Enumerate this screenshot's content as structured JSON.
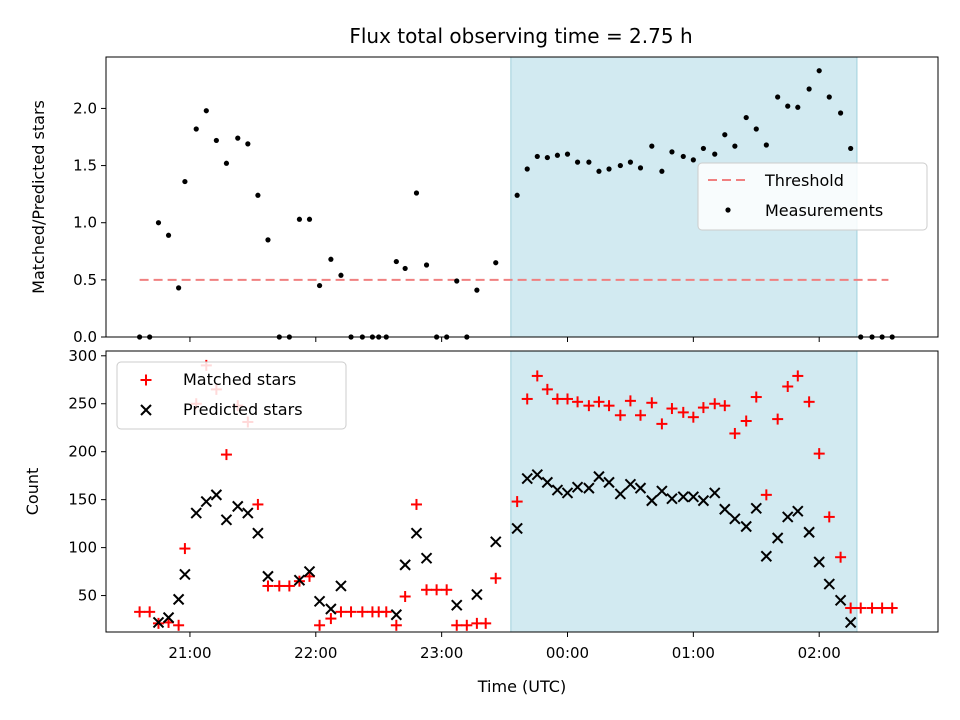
{
  "title": "Flux total observing time = 2.75 h",
  "colors": {
    "threshold": "#f08080",
    "measurement": "#000000",
    "matched": "#ff0000",
    "predicted": "#000000",
    "highlight": "#add8e6"
  },
  "chart_data": [
    {
      "type": "scatter",
      "ylabel": "Matched/Predicted stars",
      "xlim": [
        20.333,
        26.944
      ],
      "ylim": [
        0,
        2.45
      ],
      "yticks": [
        0.0,
        0.5,
        1.0,
        1.5,
        2.0
      ],
      "ytick_labels": [
        "0.0",
        "0.5",
        "1.0",
        "1.5",
        "2.0"
      ],
      "highlight_span": [
        23.55,
        26.3
      ],
      "legend": {
        "placement": "center-right",
        "entries": [
          "Threshold",
          "Measurements"
        ]
      },
      "threshold": {
        "name": "Threshold",
        "value": 0.5,
        "x_range": [
          20.6,
          26.55
        ]
      },
      "series": [
        {
          "name": "Measurements",
          "marker": "dot",
          "points": [
            [
              20.6,
              0.0
            ],
            [
              20.68,
              0.0
            ],
            [
              20.75,
              1.0
            ],
            [
              20.83,
              0.89
            ],
            [
              20.91,
              0.43
            ],
            [
              20.96,
              1.36
            ],
            [
              21.05,
              1.82
            ],
            [
              21.13,
              1.98
            ],
            [
              21.21,
              1.72
            ],
            [
              21.29,
              1.52
            ],
            [
              21.38,
              1.74
            ],
            [
              21.46,
              1.69
            ],
            [
              21.54,
              1.24
            ],
            [
              21.62,
              0.85
            ],
            [
              21.71,
              0.0
            ],
            [
              21.79,
              0.0
            ],
            [
              21.87,
              1.03
            ],
            [
              21.95,
              1.03
            ],
            [
              22.03,
              0.45
            ],
            [
              22.12,
              0.68
            ],
            [
              22.2,
              0.54
            ],
            [
              22.28,
              0.0
            ],
            [
              22.37,
              0.0
            ],
            [
              22.45,
              0.0
            ],
            [
              22.5,
              0.0
            ],
            [
              22.56,
              0.0
            ],
            [
              22.64,
              0.66
            ],
            [
              22.71,
              0.6
            ],
            [
              22.8,
              1.26
            ],
            [
              22.88,
              0.63
            ],
            [
              22.96,
              0.0
            ],
            [
              23.04,
              0.0
            ],
            [
              23.12,
              0.49
            ],
            [
              23.2,
              0.0
            ],
            [
              23.28,
              0.41
            ],
            [
              23.43,
              0.65
            ],
            [
              23.6,
              1.24
            ],
            [
              23.68,
              1.47
            ],
            [
              23.76,
              1.58
            ],
            [
              23.84,
              1.57
            ],
            [
              23.92,
              1.59
            ],
            [
              24.0,
              1.6
            ],
            [
              24.08,
              1.53
            ],
            [
              24.17,
              1.53
            ],
            [
              24.25,
              1.45
            ],
            [
              24.33,
              1.47
            ],
            [
              24.42,
              1.5
            ],
            [
              24.5,
              1.53
            ],
            [
              24.58,
              1.48
            ],
            [
              24.67,
              1.67
            ],
            [
              24.75,
              1.45
            ],
            [
              24.83,
              1.62
            ],
            [
              24.92,
              1.58
            ],
            [
              25.0,
              1.55
            ],
            [
              25.08,
              1.65
            ],
            [
              25.17,
              1.6
            ],
            [
              25.25,
              1.77
            ],
            [
              25.33,
              1.67
            ],
            [
              25.42,
              1.92
            ],
            [
              25.5,
              1.82
            ],
            [
              25.58,
              1.68
            ],
            [
              25.67,
              2.1
            ],
            [
              25.75,
              2.02
            ],
            [
              25.83,
              2.01
            ],
            [
              25.92,
              2.17
            ],
            [
              26.0,
              2.33
            ],
            [
              26.08,
              2.1
            ],
            [
              26.17,
              1.96
            ],
            [
              26.25,
              1.65
            ],
            [
              26.33,
              0.0
            ],
            [
              26.42,
              0.0
            ],
            [
              26.5,
              0.0
            ],
            [
              26.58,
              0.0
            ]
          ]
        }
      ]
    },
    {
      "type": "scatter",
      "xlabel": "Time (UTC)",
      "ylabel": "Count",
      "xlim": [
        20.333,
        26.944
      ],
      "ylim": [
        12,
        305
      ],
      "yticks": [
        50,
        100,
        150,
        200,
        250,
        300
      ],
      "ytick_labels": [
        "50",
        "100",
        "150",
        "200",
        "250",
        "300"
      ],
      "xticks": [
        21,
        22,
        23,
        24,
        25,
        26
      ],
      "xtick_labels": [
        "21:00",
        "22:00",
        "23:00",
        "00:00",
        "01:00",
        "02:00"
      ],
      "highlight_span": [
        23.55,
        26.3
      ],
      "legend": {
        "placement": "top-left",
        "entries": [
          "Matched stars",
          "Predicted stars"
        ]
      },
      "series": [
        {
          "name": "Matched stars",
          "marker": "plus",
          "points": [
            [
              20.6,
              33
            ],
            [
              20.68,
              33
            ],
            [
              20.75,
              21
            ],
            [
              20.83,
              22
            ],
            [
              20.91,
              19
            ],
            [
              20.96,
              99
            ],
            [
              21.05,
              250
            ],
            [
              21.13,
              290
            ],
            [
              21.21,
              265
            ],
            [
              21.29,
              197
            ],
            [
              21.38,
              248
            ],
            [
              21.46,
              231
            ],
            [
              21.54,
              145
            ],
            [
              21.62,
              60
            ],
            [
              21.71,
              60
            ],
            [
              21.79,
              60
            ],
            [
              21.87,
              65
            ],
            [
              21.95,
              70
            ],
            [
              22.03,
              19
            ],
            [
              22.12,
              26
            ],
            [
              22.2,
              33
            ],
            [
              22.28,
              33
            ],
            [
              22.37,
              33
            ],
            [
              22.45,
              33
            ],
            [
              22.5,
              33
            ],
            [
              22.56,
              33
            ],
            [
              22.64,
              19
            ],
            [
              22.71,
              49
            ],
            [
              22.8,
              145
            ],
            [
              22.88,
              56
            ],
            [
              22.96,
              56
            ],
            [
              23.04,
              56
            ],
            [
              23.12,
              19
            ],
            [
              23.2,
              19
            ],
            [
              23.28,
              21
            ],
            [
              23.35,
              21
            ],
            [
              23.43,
              68
            ],
            [
              23.6,
              148
            ],
            [
              23.68,
              255
            ],
            [
              23.76,
              279
            ],
            [
              23.84,
              265
            ],
            [
              23.92,
              255
            ],
            [
              24.0,
              255
            ],
            [
              24.08,
              252
            ],
            [
              24.17,
              248
            ],
            [
              24.25,
              252
            ],
            [
              24.33,
              248
            ],
            [
              24.42,
              238
            ],
            [
              24.5,
              253
            ],
            [
              24.58,
              238
            ],
            [
              24.67,
              251
            ],
            [
              24.75,
              229
            ],
            [
              24.83,
              245
            ],
            [
              24.92,
              241
            ],
            [
              25.0,
              236
            ],
            [
              25.08,
              246
            ],
            [
              25.17,
              250
            ],
            [
              25.25,
              248
            ],
            [
              25.33,
              219
            ],
            [
              25.42,
              232
            ],
            [
              25.5,
              257
            ],
            [
              25.58,
              155
            ],
            [
              25.67,
              234
            ],
            [
              25.75,
              268
            ],
            [
              25.83,
              279
            ],
            [
              25.92,
              252
            ],
            [
              26.0,
              198
            ],
            [
              26.08,
              132
            ],
            [
              26.17,
              90
            ],
            [
              26.25,
              37
            ],
            [
              26.33,
              37
            ],
            [
              26.42,
              37
            ],
            [
              26.5,
              37
            ],
            [
              26.58,
              37
            ]
          ]
        },
        {
          "name": "Predicted stars",
          "marker": "x",
          "points": [
            [
              20.75,
              22
            ],
            [
              20.83,
              27
            ],
            [
              20.91,
              46
            ],
            [
              20.96,
              72
            ],
            [
              21.05,
              136
            ],
            [
              21.13,
              148
            ],
            [
              21.21,
              155
            ],
            [
              21.29,
              129
            ],
            [
              21.38,
              143
            ],
            [
              21.46,
              136
            ],
            [
              21.54,
              115
            ],
            [
              21.62,
              70
            ],
            [
              21.87,
              66
            ],
            [
              21.95,
              75
            ],
            [
              22.03,
              44
            ],
            [
              22.12,
              36
            ],
            [
              22.2,
              60
            ],
            [
              22.64,
              30
            ],
            [
              22.71,
              82
            ],
            [
              22.8,
              115
            ],
            [
              22.88,
              89
            ],
            [
              23.12,
              40
            ],
            [
              23.28,
              51
            ],
            [
              23.43,
              106
            ],
            [
              23.6,
              120
            ],
            [
              23.68,
              172
            ],
            [
              23.76,
              176
            ],
            [
              23.84,
              168
            ],
            [
              23.92,
              160
            ],
            [
              24.0,
              157
            ],
            [
              24.08,
              163
            ],
            [
              24.17,
              162
            ],
            [
              24.25,
              174
            ],
            [
              24.33,
              168
            ],
            [
              24.42,
              156
            ],
            [
              24.5,
              166
            ],
            [
              24.58,
              162
            ],
            [
              24.67,
              149
            ],
            [
              24.75,
              159
            ],
            [
              24.83,
              151
            ],
            [
              24.92,
              153
            ],
            [
              25.0,
              153
            ],
            [
              25.08,
              149
            ],
            [
              25.17,
              157
            ],
            [
              25.25,
              140
            ],
            [
              25.33,
              130
            ],
            [
              25.42,
              122
            ],
            [
              25.5,
              141
            ],
            [
              25.58,
              91
            ],
            [
              25.67,
              110
            ],
            [
              25.75,
              132
            ],
            [
              25.83,
              138
            ],
            [
              25.92,
              116
            ],
            [
              26.0,
              85
            ],
            [
              26.08,
              62
            ],
            [
              26.17,
              45
            ],
            [
              26.25,
              22
            ]
          ]
        }
      ]
    }
  ]
}
